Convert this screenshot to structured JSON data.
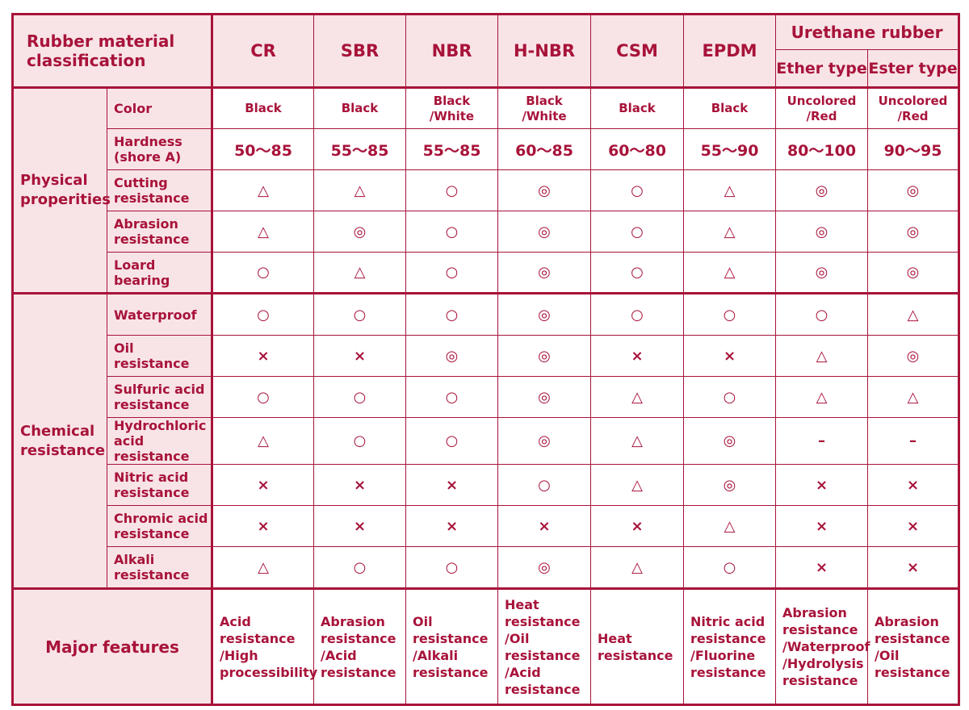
{
  "header": {
    "classification": "Rubber material\nclassification",
    "materials": [
      "CR",
      "SBR",
      "NBR",
      "H-NBR",
      "CSM",
      "EPDM"
    ],
    "urethane": "Urethane rubber",
    "urethane_types": [
      "Ether type",
      "Ester type"
    ]
  },
  "groups": {
    "physical": "Physical\nproperities",
    "chemical": "Chemical\nresistance",
    "major": "Major features"
  },
  "rows": {
    "color": {
      "label": "Color",
      "values": [
        "Black",
        "Black",
        "Black\n/White",
        "Black\n/White",
        "Black",
        "Black",
        "Uncolored\n/Red",
        "Uncolored\n/Red"
      ]
    },
    "hardness": {
      "label": "Hardness\n(shore A)",
      "values": [
        "50〜85",
        "55〜85",
        "55〜85",
        "60〜85",
        "60〜80",
        "55〜90",
        "80〜100",
        "90〜95"
      ]
    },
    "cutting": {
      "label": "Cutting\nresistance",
      "values": [
        "△",
        "△",
        "○",
        "◎",
        "○",
        "△",
        "◎",
        "◎"
      ]
    },
    "abrasion": {
      "label": "Abrasion\nresistance",
      "values": [
        "△",
        "◎",
        "○",
        "◎",
        "○",
        "△",
        "◎",
        "◎"
      ]
    },
    "load": {
      "label": "Loard\nbearing",
      "values": [
        "○",
        "△",
        "○",
        "◎",
        "○",
        "△",
        "◎",
        "◎"
      ]
    },
    "waterproof": {
      "label": "Waterproof",
      "values": [
        "○",
        "○",
        "○",
        "◎",
        "○",
        "○",
        "○",
        "△"
      ]
    },
    "oil": {
      "label": "Oil\nresistance",
      "values": [
        "×",
        "×",
        "◎",
        "◎",
        "×",
        "×",
        "△",
        "◎"
      ]
    },
    "sulfuric": {
      "label": "Sulfuric acid\nresistance",
      "values": [
        "○",
        "○",
        "○",
        "◎",
        "△",
        "○",
        "△",
        "△"
      ]
    },
    "hydrochloric": {
      "label": "Hydrochloric\nacid resistance",
      "values": [
        "△",
        "○",
        "○",
        "◎",
        "△",
        "◎",
        "–",
        "–"
      ]
    },
    "nitric": {
      "label": "Nitric acid\nresistance",
      "values": [
        "×",
        "×",
        "×",
        "○",
        "△",
        "◎",
        "×",
        "×"
      ]
    },
    "chromic": {
      "label": "Chromic acid\nresistance",
      "values": [
        "×",
        "×",
        "×",
        "×",
        "×",
        "△",
        "×",
        "×"
      ]
    },
    "alkali": {
      "label": "Alkali\nresistance",
      "values": [
        "△",
        "○",
        "○",
        "◎",
        "△",
        "○",
        "×",
        "×"
      ]
    }
  },
  "major_features": [
    "Acid\nresistance\n/High\nprocessibility",
    "Abrasion\nresistance\n/Acid\nresistance",
    "Oil\nresistance\n/Alkali\nresistance",
    "Heat\nresistance\n/Oil\nresistance\n/Acid\nresistance",
    "Heat\nresistance",
    "Nitric acid\nresistance\n/Fluorine\nresistance",
    "Abrasion\nresistance\n/Waterproof\n/Hydrolysis\nresistance",
    "Abrasion\nresistance\n/Oil\nresistance"
  ],
  "colors": {
    "accent": "#a8133a",
    "header_bg": "#f8e4e7",
    "background": "#ffffff"
  }
}
